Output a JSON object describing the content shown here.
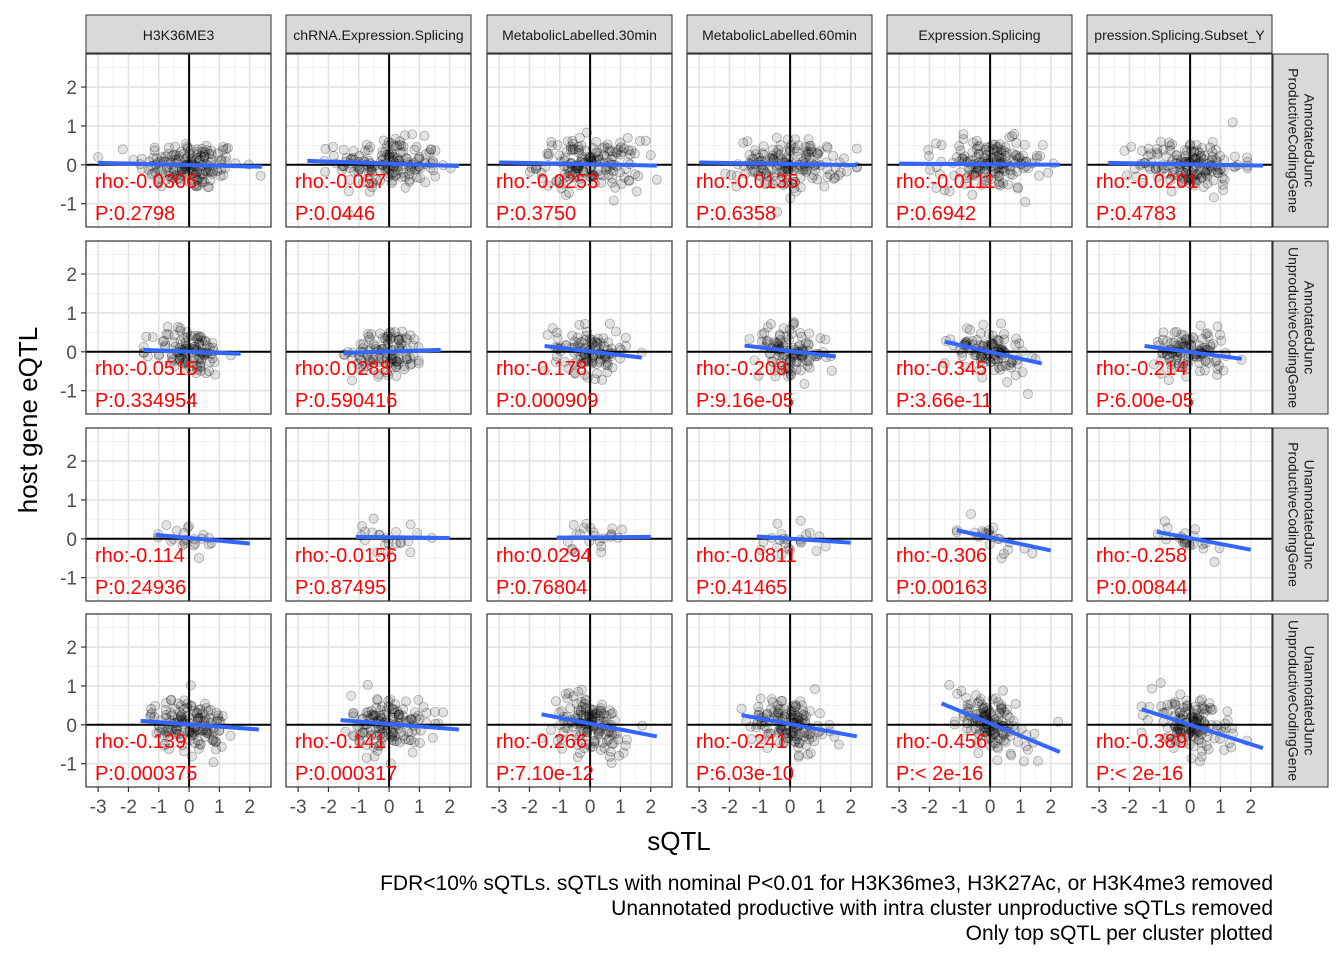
{
  "chart_data": {
    "type": "scatter",
    "xlabel": "sQTL",
    "ylabel": "host gene eQTL",
    "xlim": [
      -3.4,
      2.7
    ],
    "ylim": [
      -1.6,
      2.85
    ],
    "x_ticks": [
      -3,
      -2,
      -1,
      0,
      1,
      2
    ],
    "y_ticks": [
      -1,
      0,
      1,
      2
    ],
    "grid": true,
    "reference_lines": {
      "x": 0,
      "y": 0
    },
    "colors": {
      "points": "#000000",
      "fit": "#3366FF",
      "stats": "#FF0000",
      "strip": "#D9D9D9"
    },
    "columns": [
      "H3K36ME3",
      "chRNA.Expression.Splicing",
      "MetabolicLabelled.30min",
      "MetabolicLabelled.60min",
      "Expression.Splicing",
      "Expression.Splicing.Subset_YRI"
    ],
    "column_strip_text": [
      "H3K36ME3",
      "chRNA.Expression.Splicing",
      "MetabolicLabelled.30min",
      "MetabolicLabelled.60min",
      "Expression.Splicing",
      "pression.Splicing.Subset_Y"
    ],
    "rows": [
      {
        "line1": "AnnotatedJunc",
        "line2": "ProductiveCodingGene",
        "n": 160,
        "sx": 0.85,
        "sy": 0.32
      },
      {
        "line1": "AnnotatedJunc",
        "line2": "UnproductiveCodingGene",
        "n": 110,
        "sx": 0.6,
        "sy": 0.3
      },
      {
        "line1": "UnannotatedJunc",
        "line2": "ProductiveCodingGene",
        "n": 22,
        "sx": 0.55,
        "sy": 0.2
      },
      {
        "line1": "UnannotatedJunc",
        "line2": "UnproductiveCodingGene",
        "n": 140,
        "sx": 0.62,
        "sy": 0.35
      }
    ],
    "panels": [
      [
        {
          "rho": "rho:-0.0306",
          "p": "P:0.2798",
          "fit": [
            [
              -3.0,
              0.05
            ],
            [
              2.4,
              -0.05
            ]
          ]
        },
        {
          "rho": "rho:-0.057",
          "p": "P:0.0446",
          "fit": [
            [
              -2.7,
              0.1
            ],
            [
              2.3,
              -0.03
            ]
          ]
        },
        {
          "rho": "rho:-0.0253",
          "p": "P:0.3750",
          "fit": [
            [
              -3.0,
              0.06
            ],
            [
              2.2,
              -0.02
            ]
          ]
        },
        {
          "rho": "rho:-0.0135",
          "p": "P:0.6358",
          "fit": [
            [
              -3.0,
              0.06
            ],
            [
              2.2,
              -0.01
            ]
          ]
        },
        {
          "rho": "rho:-0.0111",
          "p": "P:0.6942",
          "fit": [
            [
              -3.0,
              0.03
            ],
            [
              2.3,
              0.0
            ]
          ]
        },
        {
          "rho": "rho:-0.0201",
          "p": "P:0.4783",
          "fit": [
            [
              -2.7,
              0.05
            ],
            [
              2.4,
              -0.02
            ]
          ]
        }
      ],
      [
        {
          "rho": "rho:-0.0515",
          "p": "P:0.334954",
          "fit": [
            [
              -1.5,
              0.05
            ],
            [
              1.7,
              -0.05
            ]
          ]
        },
        {
          "rho": "rho:0.0288",
          "p": "P:0.590416",
          "fit": [
            [
              -1.5,
              -0.03
            ],
            [
              1.7,
              0.05
            ]
          ]
        },
        {
          "rho": "rho:-0.178",
          "p": "P:0.000909",
          "fit": [
            [
              -1.5,
              0.15
            ],
            [
              1.7,
              -0.15
            ]
          ]
        },
        {
          "rho": "rho:-0.209",
          "p": "P:9.16e-05",
          "fit": [
            [
              -1.5,
              0.16
            ],
            [
              1.5,
              -0.12
            ]
          ]
        },
        {
          "rho": "rho:-0.345",
          "p": "P:3.66e-11",
          "fit": [
            [
              -1.5,
              0.26
            ],
            [
              1.7,
              -0.3
            ]
          ]
        },
        {
          "rho": "rho:-0.214",
          "p": "P:6.00e-05",
          "fit": [
            [
              -1.5,
              0.15
            ],
            [
              1.7,
              -0.18
            ]
          ]
        }
      ],
      [
        {
          "rho": "rho:-0.114",
          "p": "P:0.24936",
          "fit": [
            [
              -1.1,
              0.1
            ],
            [
              2.0,
              -0.12
            ]
          ]
        },
        {
          "rho": "rho:-0.0156",
          "p": "P:0.87495",
          "fit": [
            [
              -1.1,
              0.05
            ],
            [
              2.0,
              0.02
            ]
          ]
        },
        {
          "rho": "rho:0.0294",
          "p": "P:0.76804",
          "fit": [
            [
              -1.1,
              0.03
            ],
            [
              2.0,
              0.05
            ]
          ]
        },
        {
          "rho": "rho:-0.0811",
          "p": "P:0.41465",
          "fit": [
            [
              -1.1,
              0.06
            ],
            [
              2.0,
              -0.1
            ]
          ]
        },
        {
          "rho": "rho:-0.306",
          "p": "P:0.00163",
          "fit": [
            [
              -1.1,
              0.22
            ],
            [
              2.0,
              -0.3
            ]
          ]
        },
        {
          "rho": "rho:-0.258",
          "p": "P:0.00844",
          "fit": [
            [
              -1.1,
              0.18
            ],
            [
              2.0,
              -0.28
            ]
          ]
        }
      ],
      [
        {
          "rho": "rho:-0.139",
          "p": "P:0.000375",
          "fit": [
            [
              -1.6,
              0.1
            ],
            [
              2.3,
              -0.12
            ]
          ]
        },
        {
          "rho": "rho:-0.141",
          "p": "P:0.000317",
          "fit": [
            [
              -1.6,
              0.12
            ],
            [
              2.3,
              -0.12
            ]
          ]
        },
        {
          "rho": "rho:-0.266",
          "p": "P:7.10e-12",
          "fit": [
            [
              -1.6,
              0.27
            ],
            [
              2.2,
              -0.3
            ]
          ]
        },
        {
          "rho": "rho:-0.241",
          "p": "P:6.03e-10",
          "fit": [
            [
              -1.6,
              0.25
            ],
            [
              2.2,
              -0.3
            ]
          ]
        },
        {
          "rho": "rho:-0.456",
          "p": "P:< 2e-16",
          "fit": [
            [
              -1.6,
              0.55
            ],
            [
              2.3,
              -0.7
            ]
          ]
        },
        {
          "rho": "rho:-0.389",
          "p": "P:< 2e-16",
          "fit": [
            [
              -1.6,
              0.4
            ],
            [
              2.4,
              -0.6
            ]
          ]
        }
      ]
    ]
  },
  "caption": [
    "FDR<10% sQTLs. sQTLs with nominal P<0.01 for H3K36me3, H3K27Ac, or H3K4me3 removed",
    "Unannotated productive with intra cluster unproductive sQTLs removed",
    "Only top sQTL per cluster plotted"
  ]
}
